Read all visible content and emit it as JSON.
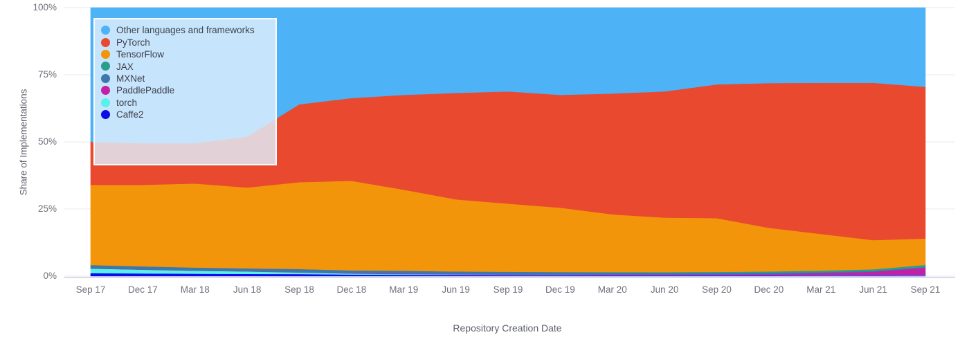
{
  "chart_data": {
    "type": "area",
    "stacked": true,
    "normalized": "percent",
    "title": "",
    "xlabel": "Repository Creation Date",
    "ylabel": "Share of Implementations",
    "x_tick_labels": [
      "Sep 17",
      "Dec 17",
      "Mar 18",
      "Jun 18",
      "Sep 18",
      "Dec 18",
      "Mar 19",
      "Jun 19",
      "Sep 19",
      "Dec 19",
      "Mar 20",
      "Jun 20",
      "Sep 20",
      "Dec 20",
      "Mar 21",
      "Jun 21",
      "Sep 21"
    ],
    "y_tick_labels": [
      "0%",
      "25%",
      "50%",
      "75%",
      "100%"
    ],
    "y_tick_values": [
      0,
      25,
      50,
      75,
      100
    ],
    "ylim": [
      0,
      100
    ],
    "grid": true,
    "legend_position": "top-left",
    "stack_order_bottom_to_top": [
      "Caffe2",
      "torch",
      "PaddlePaddle",
      "MXNet",
      "JAX",
      "TensorFlow",
      "PyTorch",
      "Other languages and frameworks"
    ],
    "series": [
      {
        "name": "Other languages and frameworks",
        "color": "#4db2f6",
        "values": [
          50,
          50.5,
          50.5,
          48,
          36,
          33.7,
          32.5,
          31.8,
          31.2,
          32.5,
          32,
          31.2,
          28.6,
          28.1,
          28,
          28,
          29.5
        ]
      },
      {
        "name": "PyTorch",
        "color": "#e9492f",
        "values": [
          16,
          15.5,
          15,
          19,
          29,
          30.8,
          35.3,
          39.6,
          41.8,
          42,
          45,
          47,
          49.8,
          53.9,
          56.3,
          58.6,
          56.5
        ]
      },
      {
        "name": "TensorFlow",
        "color": "#f2950a",
        "values": [
          29.85,
          30.35,
          31.3,
          30.1,
          32.35,
          33.35,
          30.2,
          26.85,
          25.35,
          23.95,
          21.48,
          20.3,
          20,
          16.25,
          13.65,
          10.85,
          9.8
        ]
      },
      {
        "name": "JAX",
        "color": "#2a9d8f",
        "values": [
          0,
          0,
          0,
          0,
          0,
          0,
          0,
          0,
          0.05,
          0.1,
          0.15,
          0.25,
          0.35,
          0.5,
          0.55,
          0.6,
          0.8
        ]
      },
      {
        "name": "MXNet",
        "color": "#3d77ab",
        "values": [
          1.3,
          1.2,
          1.15,
          1.1,
          1.2,
          1.1,
          1.05,
          0.9,
          0.85,
          0.75,
          0.65,
          0.55,
          0.5,
          0.4,
          0.35,
          0.3,
          0.25
        ]
      },
      {
        "name": "PaddlePaddle",
        "color": "#c320a7",
        "values": [
          0.05,
          0.05,
          0.05,
          0.05,
          0.1,
          0.1,
          0.15,
          0.15,
          0.15,
          0.2,
          0.25,
          0.3,
          0.35,
          0.45,
          0.8,
          1.3,
          2.8
        ]
      },
      {
        "name": "torch",
        "color": "#58f1e9",
        "values": [
          1.7,
          1.4,
          1.1,
          0.9,
          0.55,
          0.35,
          0.3,
          0.25,
          0.2,
          0.15,
          0.12,
          0.1,
          0.1,
          0.1,
          0.1,
          0.1,
          0.15
        ]
      },
      {
        "name": "Caffe2",
        "color": "#0c0ce9",
        "values": [
          1.1,
          1,
          0.9,
          0.85,
          0.8,
          0.6,
          0.5,
          0.45,
          0.4,
          0.35,
          0.35,
          0.3,
          0.3,
          0.3,
          0.25,
          0.25,
          0.2
        ]
      }
    ],
    "colors": {
      "grid_line": "#eaeaf1",
      "axis_line": "#d9d9ec",
      "tick_text": "#70707c",
      "axis_title_text": "#5c5f6b",
      "legend_text": "#3f3f4a",
      "legend_background": "#e0f0fc"
    }
  }
}
